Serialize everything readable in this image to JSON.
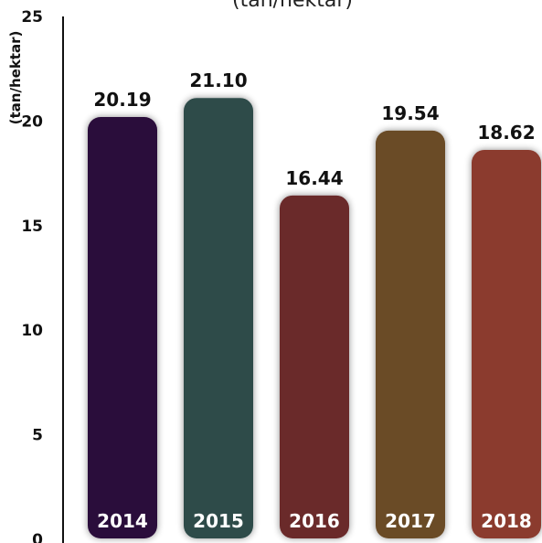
{
  "chart_data": {
    "type": "bar",
    "title": "(tan/hektar)",
    "ylabel": "(tan/hektar)",
    "xlabel": "",
    "ylim": [
      0,
      25
    ],
    "yticks": [
      "0",
      "5",
      "10",
      "15",
      "20",
      "25"
    ],
    "categories": [
      "2014",
      "2015",
      "2016",
      "2017",
      "2018"
    ],
    "values": [
      20.19,
      21.1,
      16.44,
      19.54,
      18.62
    ],
    "value_labels": [
      "20.19",
      "21.10",
      "16.44",
      "19.54",
      "18.62"
    ],
    "colors": [
      "#2c0d3b",
      "#2d4c4a",
      "#6a2a2c",
      "#6a4b27",
      "#8b3b2e"
    ],
    "grid": false,
    "legend": "none"
  }
}
